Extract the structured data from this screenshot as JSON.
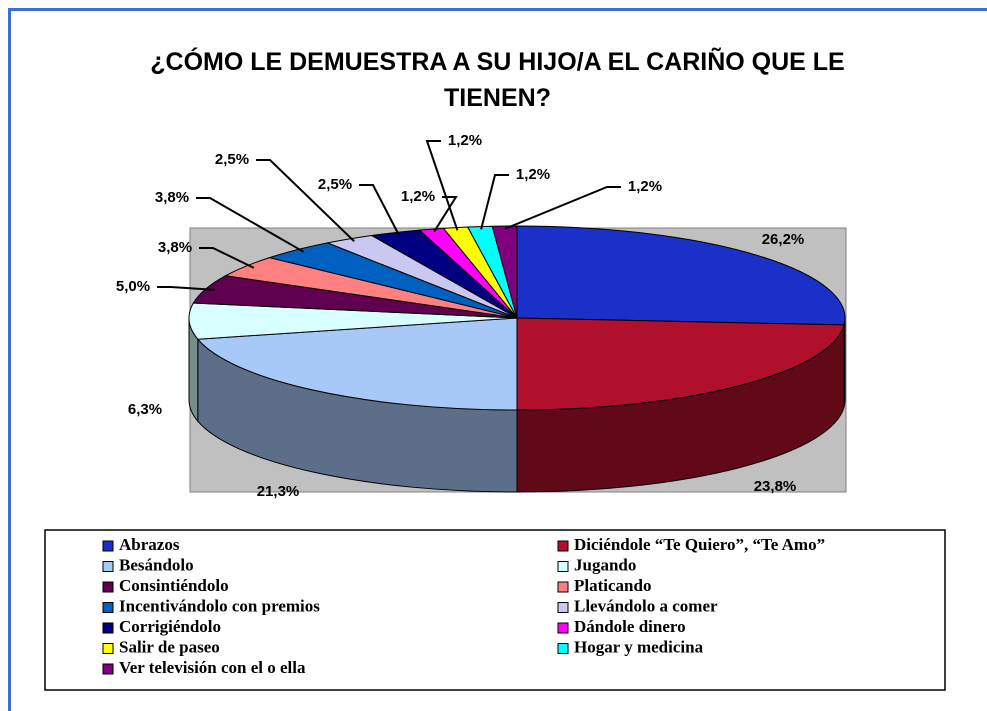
{
  "chart_data": {
    "type": "pie",
    "title": "¿CÓMO LE DEMUESTRA A SU HIJO/A EL CARIÑO QUE LE TIENEN?",
    "categories": [
      "Abrazos",
      "Diciéndole “Te Quiero”, “Te Amo”",
      "Besándolo",
      "Jugando",
      "Consintiéndolo",
      "Platicando",
      "Incentivándolo con premios",
      "Llevándolo a comer",
      "Corrigiéndolo",
      "Dándole dinero",
      "Salir de paseo",
      "Hogar y medicina",
      "Ver televisión con el o ella"
    ],
    "values": [
      26.2,
      23.8,
      21.3,
      6.3,
      5.0,
      3.8,
      3.8,
      2.5,
      2.5,
      1.2,
      1.2,
      1.2,
      1.2
    ],
    "value_labels": [
      "26,2%",
      "23,8%",
      "21,3%",
      "6,3%",
      "5,0%",
      "3,8%",
      "3,8%",
      "2,5%",
      "2,5%",
      "1,2%",
      "1,2%",
      "1,2%",
      "1,2%"
    ],
    "colors": [
      "#1a30c8",
      "#b0102c",
      "#a8c8f8",
      "#d8ffff",
      "#600050",
      "#ff8080",
      "#0060c0",
      "#c8c8f0",
      "#000080",
      "#ff00ff",
      "#ffff00",
      "#00ffff",
      "#800080"
    ],
    "legend": "bottom"
  }
}
